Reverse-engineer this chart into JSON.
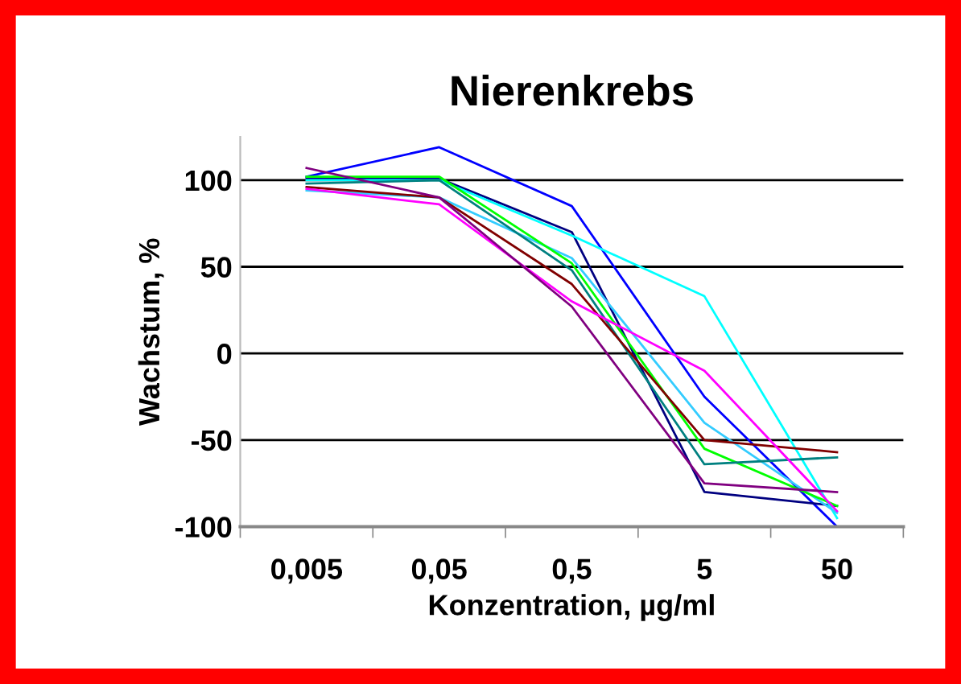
{
  "chart_data": {
    "type": "line",
    "title": "Nierenkrebs",
    "xlabel": "Konzentration, µg/ml",
    "ylabel": "Wachstum, %",
    "categories": [
      "0,005",
      "0,05",
      "0,5",
      "5",
      "50"
    ],
    "series": [
      {
        "color": "#0000ff",
        "values": [
          102,
          119,
          85,
          -25,
          -100
        ]
      },
      {
        "color": "#000080",
        "values": [
          101,
          101,
          70,
          -80,
          -88
        ]
      },
      {
        "color": "#00ffff",
        "values": [
          100,
          100,
          68,
          33,
          -95
        ]
      },
      {
        "color": "#33ccff",
        "values": [
          94,
          90,
          55,
          -40,
          -92
        ]
      },
      {
        "color": "#00ff00",
        "values": [
          102,
          102,
          52,
          -55,
          -88
        ]
      },
      {
        "color": "#008080",
        "values": [
          98,
          100,
          48,
          -64,
          -60
        ]
      },
      {
        "color": "#800000",
        "values": [
          96,
          90,
          40,
          -50,
          -57
        ]
      },
      {
        "color": "#ff00ff",
        "values": [
          95,
          86,
          30,
          -10,
          -91
        ]
      },
      {
        "color": "#800080",
        "values": [
          107,
          90,
          27,
          -75,
          -80
        ]
      }
    ],
    "ylim": [
      -100,
      125
    ],
    "yticks": [
      -100,
      -50,
      0,
      50,
      100
    ],
    "grid": "y",
    "legend": false,
    "marker": "none",
    "line_style": "solid"
  }
}
